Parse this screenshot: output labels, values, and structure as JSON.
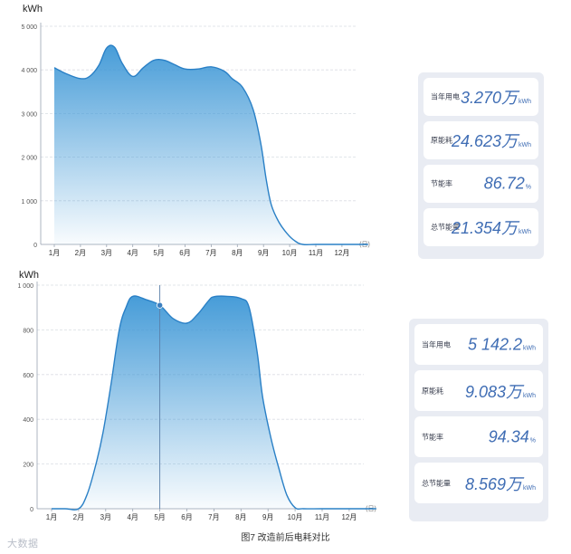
{
  "charts": [
    {
      "id": "top",
      "ylabel": "kWh",
      "xunit": "(日)",
      "yticks": [
        "0",
        "1 000",
        "2 000",
        "3 000",
        "4 000",
        "5 000"
      ],
      "area_color": "#3d97d6"
    },
    {
      "id": "bottom",
      "ylabel": "kWh",
      "xunit": "(日)",
      "yticks": [
        "0",
        "200",
        "400",
        "600",
        "800",
        "1 000"
      ],
      "area_color": "#3d97d6"
    }
  ],
  "chart_data": [
    {
      "type": "area",
      "title": "",
      "xlabel": "",
      "ylabel": "kWh",
      "ylim": [
        0,
        5000
      ],
      "grid": true,
      "categories": [
        "1月",
        "2月",
        "3月",
        "4月",
        "5月",
        "6月",
        "7月",
        "8月",
        "9月",
        "10月",
        "11月",
        "12月"
      ],
      "x": [
        0,
        0.5,
        1,
        1.35,
        1.7,
        2,
        2.3,
        2.6,
        3,
        3.4,
        3.8,
        4.2,
        4.6,
        5,
        5.5,
        6,
        6.5,
        6.8,
        7.2,
        7.6,
        7.9,
        8.1,
        8.3,
        8.6,
        8.9,
        9.2,
        9.5,
        10,
        11,
        12
      ],
      "values": [
        4050,
        3900,
        3800,
        3850,
        4100,
        4500,
        4520,
        4150,
        3850,
        4050,
        4220,
        4220,
        4120,
        4020,
        4020,
        4070,
        3970,
        3800,
        3600,
        3100,
        2300,
        1500,
        900,
        500,
        250,
        80,
        0,
        0,
        0,
        0
      ]
    },
    {
      "type": "area",
      "title": "",
      "xlabel": "",
      "ylabel": "kWh",
      "ylim": [
        0,
        1000
      ],
      "grid": true,
      "categories": [
        "1月",
        "2月",
        "3月",
        "4月",
        "5月",
        "6月",
        "7月",
        "8月",
        "9月",
        "10月",
        "11月",
        "12月"
      ],
      "x": [
        0,
        0.5,
        1,
        1.3,
        1.6,
        1.9,
        2.2,
        2.5,
        2.75,
        3,
        3.5,
        4,
        4.5,
        5,
        5.4,
        5.8,
        6,
        6.5,
        7,
        7.3,
        7.6,
        7.8,
        8.1,
        8.4,
        8.7,
        9,
        9.3,
        10,
        11,
        12
      ],
      "values": [
        0,
        0,
        0,
        60,
        180,
        340,
        560,
        800,
        900,
        950,
        935,
        910,
        850,
        830,
        870,
        930,
        948,
        950,
        940,
        900,
        700,
        500,
        320,
        180,
        60,
        5,
        0,
        0,
        0,
        0
      ],
      "marker": {
        "x": 4,
        "value": 910
      }
    }
  ],
  "stats": [
    [
      {
        "label": "当年用电",
        "value": "3.270万",
        "unit": "kWh"
      },
      {
        "label": "原能耗",
        "value": "24.623万",
        "unit": "kWh"
      },
      {
        "label": "节能率",
        "value": "86.72",
        "unit": "%"
      },
      {
        "label": "总节能量",
        "value": "21.354万",
        "unit": "kWh"
      }
    ],
    [
      {
        "label": "当年用电",
        "value": "5 142.2",
        "unit": "kWh"
      },
      {
        "label": "原能耗",
        "value": "9.083万",
        "unit": "kWh"
      },
      {
        "label": "节能率",
        "value": "94.34",
        "unit": "%"
      },
      {
        "label": "总节能量",
        "value": "8.569万",
        "unit": "kWh"
      }
    ]
  ],
  "caption": "图7  改造前后电耗对比",
  "watermark": "大数据"
}
